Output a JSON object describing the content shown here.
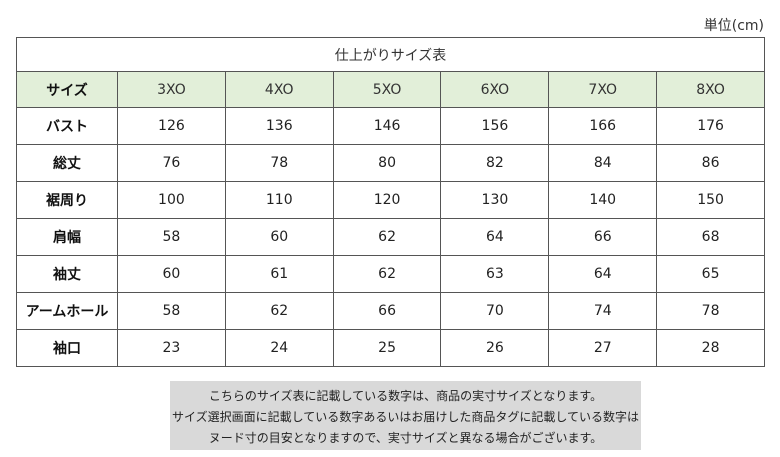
{
  "unit_label": "単位(cm)",
  "table": {
    "caption": "仕上がりサイズ表",
    "corner_label": "サイズ",
    "sizes": [
      "3XO",
      "4XO",
      "5XO",
      "6XO",
      "7XO",
      "8XO"
    ],
    "rows": [
      {
        "label": "バスト",
        "values": [
          "126",
          "136",
          "146",
          "156",
          "166",
          "176"
        ]
      },
      {
        "label": "総丈",
        "values": [
          "76",
          "78",
          "80",
          "82",
          "84",
          "86"
        ]
      },
      {
        "label": "裾周り",
        "values": [
          "100",
          "110",
          "120",
          "130",
          "140",
          "150"
        ]
      },
      {
        "label": "肩幅",
        "values": [
          "58",
          "60",
          "62",
          "64",
          "66",
          "68"
        ]
      },
      {
        "label": "袖丈",
        "values": [
          "60",
          "61",
          "62",
          "63",
          "64",
          "65"
        ]
      },
      {
        "label": "アームホール",
        "values": [
          "58",
          "62",
          "66",
          "70",
          "74",
          "78"
        ]
      },
      {
        "label": "袖口",
        "values": [
          "23",
          "24",
          "25",
          "26",
          "27",
          "28"
        ]
      }
    ]
  },
  "note": {
    "lines": [
      "こちらのサイズ表に記載している数字は、商品の実寸サイズとなります。",
      "サイズ選択画面に記載している数字あるいはお届けした商品タグに記載している数字は",
      "ヌード寸の目安となりますので、実寸サイズと異なる場合がございます。"
    ]
  }
}
